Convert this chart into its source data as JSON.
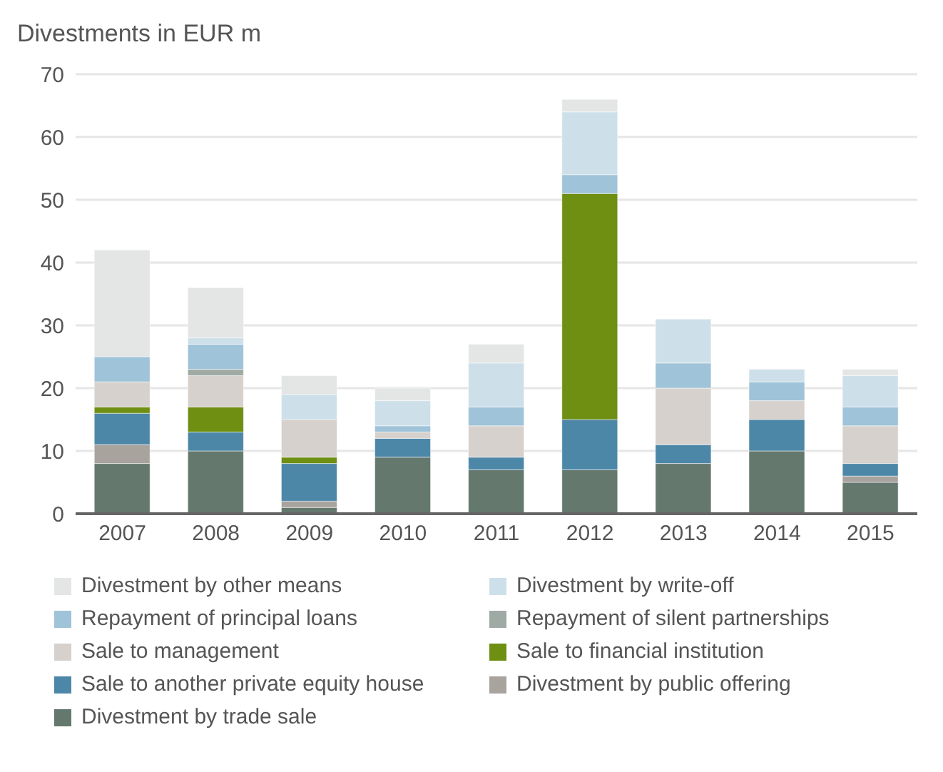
{
  "chart_data": {
    "type": "bar",
    "title": "Divestments in EUR m",
    "categories": [
      "2007",
      "2008",
      "2009",
      "2010",
      "2011",
      "2012",
      "2013",
      "2014",
      "2015"
    ],
    "stacked": true,
    "ylim": [
      0,
      70
    ],
    "yticks": [
      0,
      10,
      20,
      30,
      40,
      50,
      60,
      70
    ],
    "grid": "y",
    "legend": "bottom",
    "series": [
      {
        "name": "Divestment by trade sale",
        "color": "#64786e",
        "values": [
          8,
          10,
          1,
          9,
          7,
          7,
          8,
          10,
          5
        ]
      },
      {
        "name": "Divestment by public offering",
        "color": "#a9a39e",
        "values": [
          3,
          0,
          1,
          0,
          0,
          0,
          0,
          0,
          1
        ]
      },
      {
        "name": "Sale to another private equity house",
        "color": "#4d87a8",
        "values": [
          5,
          3,
          6,
          3,
          2,
          8,
          3,
          5,
          2
        ]
      },
      {
        "name": "Sale to financial institution",
        "color": "#6e8f12",
        "values": [
          1,
          4,
          1,
          0,
          0,
          36,
          0,
          0,
          0
        ]
      },
      {
        "name": "Sale to management",
        "color": "#d6d1cc",
        "values": [
          4,
          5,
          6,
          1,
          5,
          0,
          9,
          3,
          6
        ]
      },
      {
        "name": "Repayment of silent partnerships",
        "color": "#9eaaa3",
        "values": [
          0,
          1,
          0,
          0,
          0,
          0,
          0,
          0,
          0
        ]
      },
      {
        "name": "Repayment of principal loans",
        "color": "#9fc3d8",
        "values": [
          4,
          4,
          0,
          1,
          3,
          3,
          4,
          3,
          3
        ]
      },
      {
        "name": "Divestment by write-off",
        "color": "#cde0ea",
        "values": [
          0,
          1,
          4,
          4,
          7,
          10,
          7,
          2,
          5
        ]
      },
      {
        "name": "Divestment by other means",
        "color": "#e3e6e5",
        "values": [
          17,
          8,
          3,
          2,
          3,
          2,
          0,
          0,
          1
        ]
      }
    ]
  }
}
